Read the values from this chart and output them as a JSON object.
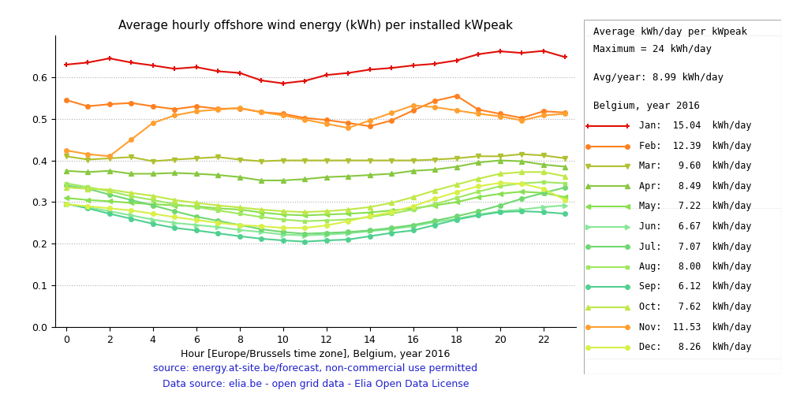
{
  "title": "Average hourly offshore wind energy (kWh) per installed kWpeak",
  "xlabel": "Hour [Europe/Brussels time zone], Belgium, year 2016",
  "source_text1": "source: energy.at-site.be/forecast, non-commercial use permitted",
  "source_text2": "Data source: elia.be - open grid data - Elia Open Data License",
  "legend_title1": "Average kWh/day per kWpeak",
  "legend_title2": "Maximum = 24 kWh/day",
  "legend_avg": "Avg/year: 8.99 kWh/day",
  "legend_country": "Belgium, year 2016",
  "hours": [
    0,
    1,
    2,
    3,
    4,
    5,
    6,
    7,
    8,
    9,
    10,
    11,
    12,
    13,
    14,
    15,
    16,
    17,
    18,
    19,
    20,
    21,
    22,
    23
  ],
  "months": {
    "Jan": {
      "label": "Jan:  15.04  kWh/day",
      "color": "#e01008",
      "marker": "+",
      "ms": 5,
      "mew": 1.5,
      "values": [
        0.63,
        0.635,
        0.645,
        0.635,
        0.628,
        0.62,
        0.624,
        0.614,
        0.61,
        0.592,
        0.585,
        0.591,
        0.605,
        0.61,
        0.618,
        0.622,
        0.628,
        0.632,
        0.64,
        0.655,
        0.662,
        0.658,
        0.663,
        0.648
      ]
    },
    "Feb": {
      "label": "Feb:  12.39  kWh/day",
      "color": "#ff8020",
      "marker": "o",
      "ms": 4,
      "mew": 1.0,
      "values": [
        0.545,
        0.53,
        0.535,
        0.538,
        0.53,
        0.523,
        0.53,
        0.524,
        0.525,
        0.516,
        0.512,
        0.502,
        0.497,
        0.49,
        0.482,
        0.496,
        0.52,
        0.543,
        0.555,
        0.522,
        0.512,
        0.502,
        0.518,
        0.515
      ]
    },
    "Mar": {
      "label": "Mar:   9.60  kWh/day",
      "color": "#b0c030",
      "marker": "v",
      "ms": 4,
      "mew": 1.0,
      "values": [
        0.41,
        0.402,
        0.405,
        0.408,
        0.398,
        0.402,
        0.405,
        0.408,
        0.402,
        0.398,
        0.4,
        0.4,
        0.4,
        0.4,
        0.4,
        0.4,
        0.4,
        0.402,
        0.405,
        0.41,
        0.41,
        0.415,
        0.412,
        0.405
      ]
    },
    "Apr": {
      "label": "Apr:   8.49  kWh/day",
      "color": "#88c840",
      "marker": "^",
      "ms": 4,
      "mew": 1.0,
      "values": [
        0.375,
        0.372,
        0.375,
        0.368,
        0.368,
        0.37,
        0.368,
        0.365,
        0.36,
        0.352,
        0.352,
        0.355,
        0.36,
        0.362,
        0.365,
        0.368,
        0.375,
        0.378,
        0.385,
        0.395,
        0.4,
        0.398,
        0.39,
        0.385
      ]
    },
    "May": {
      "label": "May:   7.22  kWh/day",
      "color": "#88e050",
      "marker": "<",
      "ms": 4,
      "mew": 1.0,
      "values": [
        0.31,
        0.305,
        0.302,
        0.298,
        0.295,
        0.292,
        0.29,
        0.285,
        0.282,
        0.275,
        0.27,
        0.268,
        0.27,
        0.272,
        0.275,
        0.28,
        0.285,
        0.292,
        0.3,
        0.312,
        0.32,
        0.325,
        0.322,
        0.312
      ]
    },
    "Jun": {
      "label": "Jun:   6.67  kWh/day",
      "color": "#88e898",
      "marker": ">",
      "ms": 4,
      "mew": 1.0,
      "values": [
        0.295,
        0.288,
        0.278,
        0.268,
        0.258,
        0.25,
        0.245,
        0.24,
        0.233,
        0.228,
        0.222,
        0.22,
        0.222,
        0.225,
        0.23,
        0.235,
        0.242,
        0.252,
        0.26,
        0.27,
        0.278,
        0.282,
        0.288,
        0.292
      ]
    },
    "Jul": {
      "label": "Jul:   7.07  kWh/day",
      "color": "#70d870",
      "marker": "o",
      "ms": 4,
      "mew": 1.0,
      "values": [
        0.34,
        0.332,
        0.318,
        0.305,
        0.292,
        0.278,
        0.265,
        0.255,
        0.245,
        0.235,
        0.228,
        0.224,
        0.226,
        0.228,
        0.232,
        0.238,
        0.245,
        0.255,
        0.266,
        0.278,
        0.292,
        0.308,
        0.322,
        0.335
      ]
    },
    "Aug": {
      "label": "Aug:   8.00  kWh/day",
      "color": "#a0e860",
      "marker": "s",
      "ms": 3,
      "mew": 1.0,
      "values": [
        0.345,
        0.336,
        0.326,
        0.314,
        0.305,
        0.295,
        0.288,
        0.28,
        0.272,
        0.264,
        0.258,
        0.254,
        0.256,
        0.258,
        0.264,
        0.272,
        0.282,
        0.295,
        0.31,
        0.325,
        0.338,
        0.345,
        0.348,
        0.345
      ]
    },
    "Sep": {
      "label": "Sep:   6.12  kWh/day",
      "color": "#50d090",
      "marker": "o",
      "ms": 4,
      "mew": 1.0,
      "values": [
        0.296,
        0.285,
        0.272,
        0.26,
        0.248,
        0.238,
        0.232,
        0.225,
        0.218,
        0.212,
        0.208,
        0.205,
        0.208,
        0.21,
        0.218,
        0.226,
        0.232,
        0.245,
        0.258,
        0.268,
        0.276,
        0.278,
        0.276,
        0.272
      ]
    },
    "Oct": {
      "label": "Oct:   7.62  kWh/day",
      "color": "#c0e848",
      "marker": "^",
      "ms": 4,
      "mew": 1.0,
      "values": [
        0.335,
        0.332,
        0.33,
        0.322,
        0.315,
        0.305,
        0.298,
        0.292,
        0.287,
        0.282,
        0.278,
        0.276,
        0.278,
        0.282,
        0.288,
        0.298,
        0.312,
        0.328,
        0.342,
        0.356,
        0.368,
        0.372,
        0.372,
        0.362
      ]
    },
    "Nov": {
      "label": "Nov:  11.53  kWh/day",
      "color": "#ffa030",
      "marker": "o",
      "ms": 4,
      "mew": 1.0,
      "values": [
        0.424,
        0.415,
        0.41,
        0.45,
        0.49,
        0.508,
        0.518,
        0.522,
        0.526,
        0.516,
        0.508,
        0.498,
        0.488,
        0.478,
        0.496,
        0.514,
        0.532,
        0.528,
        0.52,
        0.512,
        0.506,
        0.496,
        0.508,
        0.512
      ]
    },
    "Dec": {
      "label": "Dec:   8.26  kWh/day",
      "color": "#d8f048",
      "marker": "o",
      "ms": 4,
      "mew": 1.0,
      "values": [
        0.295,
        0.29,
        0.285,
        0.28,
        0.272,
        0.264,
        0.257,
        0.25,
        0.245,
        0.242,
        0.238,
        0.238,
        0.244,
        0.254,
        0.266,
        0.276,
        0.29,
        0.308,
        0.324,
        0.338,
        0.346,
        0.344,
        0.332,
        0.305
      ]
    }
  },
  "month_order": [
    "Jan",
    "Feb",
    "Mar",
    "Apr",
    "May",
    "Jun",
    "Jul",
    "Aug",
    "Sep",
    "Oct",
    "Nov",
    "Dec"
  ],
  "ylim": [
    0.0,
    0.7
  ],
  "yticks": [
    0.0,
    0.1,
    0.2,
    0.3,
    0.4,
    0.5,
    0.6
  ],
  "background_color": "#ffffff",
  "grid_color": "#b0b0b0",
  "source_color": "#2020cc",
  "figwidth": 10.0,
  "figheight": 5.0,
  "dpi": 100
}
